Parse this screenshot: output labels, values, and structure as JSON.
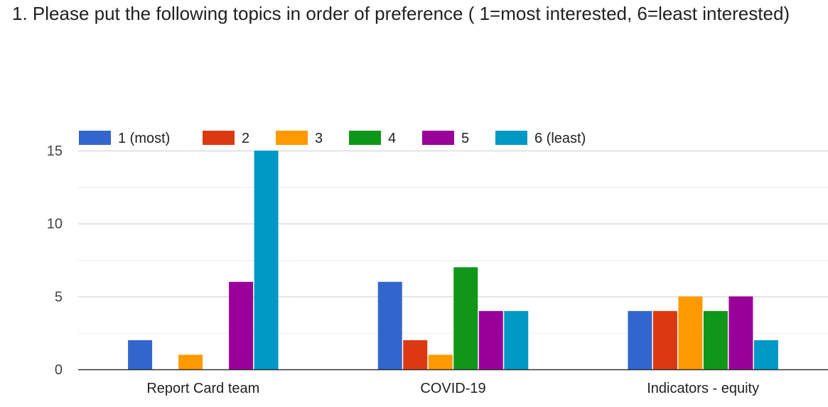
{
  "question": {
    "title": "1. Please put the following topics in order of preference ( 1=most interested, 6=least interested)"
  },
  "chart_data": {
    "type": "bar",
    "title": "1. Please put the following topics in order of preference ( 1=most interested, 6=least interested)",
    "categories": [
      "Report Card team",
      "COVID-19",
      "Indicators - equity"
    ],
    "series": [
      {
        "name": "1 (most)",
        "color": "#3366cc",
        "values": [
          2,
          6,
          4
        ]
      },
      {
        "name": "2",
        "color": "#dc3912",
        "values": [
          0,
          2,
          4
        ]
      },
      {
        "name": "3",
        "color": "#ff9900",
        "values": [
          1,
          1,
          5
        ]
      },
      {
        "name": "4",
        "color": "#109618",
        "values": [
          0,
          7,
          4
        ]
      },
      {
        "name": "5",
        "color": "#990099",
        "values": [
          6,
          4,
          5
        ]
      },
      {
        "name": "6 (least)",
        "color": "#0099c6",
        "values": [
          15,
          4,
          2
        ]
      }
    ],
    "yticks": [
      0,
      5,
      10,
      15
    ],
    "ylim": [
      0,
      15
    ],
    "xlabel": "",
    "ylabel": "",
    "legend": "top",
    "grid": true
  }
}
